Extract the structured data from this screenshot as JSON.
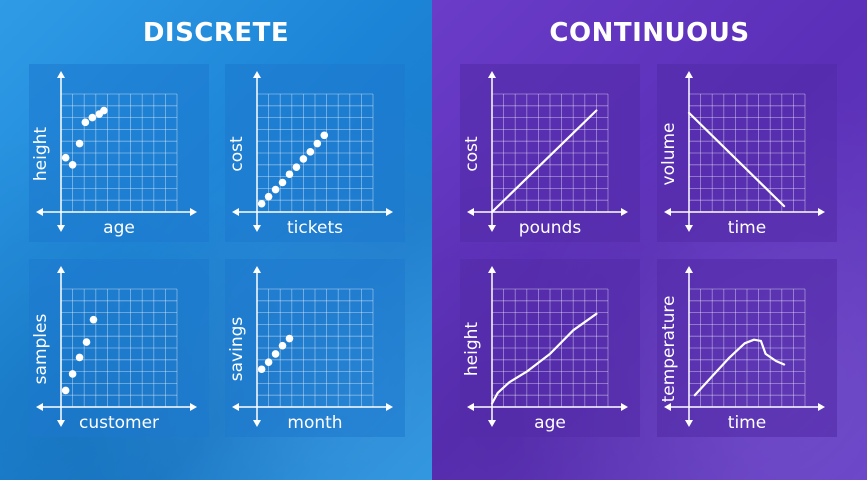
{
  "headings": {
    "discrete": "DISCRETE",
    "continuous": "CONTINUOUS"
  },
  "colors": {
    "discrete_bg": "#1c84d6",
    "continuous_bg": "#5b2fb8",
    "marks": "#ffffff"
  },
  "charts": [
    {
      "id": "height-age",
      "xlabel": "age",
      "ylabel": "height",
      "kind": "scatter",
      "points": [
        [
          0.4,
          4.6
        ],
        [
          1.0,
          4.0
        ],
        [
          1.6,
          5.8
        ],
        [
          2.1,
          7.6
        ],
        [
          2.7,
          8.0
        ],
        [
          3.3,
          8.3
        ],
        [
          3.7,
          8.6
        ]
      ]
    },
    {
      "id": "cost-tickets",
      "xlabel": "tickets",
      "ylabel": "cost",
      "kind": "scatter",
      "points": [
        [
          0.4,
          0.7
        ],
        [
          1.0,
          1.3
        ],
        [
          1.6,
          1.9
        ],
        [
          2.2,
          2.5
        ],
        [
          2.8,
          3.2
        ],
        [
          3.4,
          3.8
        ],
        [
          4.0,
          4.5
        ],
        [
          4.6,
          5.1
        ],
        [
          5.2,
          5.8
        ],
        [
          5.8,
          6.5
        ]
      ]
    },
    {
      "id": "samples-customer",
      "xlabel": "customer",
      "ylabel": "samples",
      "kind": "scatter",
      "points": [
        [
          0.4,
          1.4
        ],
        [
          1.0,
          2.8
        ],
        [
          1.6,
          4.2
        ],
        [
          2.2,
          5.5
        ],
        [
          2.8,
          7.4
        ]
      ]
    },
    {
      "id": "savings-month",
      "xlabel": "month",
      "ylabel": "savings",
      "kind": "scatter",
      "points": [
        [
          0.4,
          3.2
        ],
        [
          1.0,
          3.8
        ],
        [
          1.6,
          4.5
        ],
        [
          2.2,
          5.2
        ],
        [
          2.8,
          5.8
        ]
      ]
    },
    {
      "id": "cost-pounds",
      "xlabel": "pounds",
      "ylabel": "cost",
      "kind": "line",
      "points": [
        [
          0.0,
          0.0
        ],
        [
          9.0,
          8.6
        ]
      ]
    },
    {
      "id": "volume-time",
      "xlabel": "time",
      "ylabel": "volume",
      "kind": "line",
      "points": [
        [
          0.0,
          8.4
        ],
        [
          8.2,
          0.5
        ]
      ]
    },
    {
      "id": "height-age-continuous",
      "xlabel": "age",
      "ylabel": "height",
      "kind": "line",
      "points": [
        [
          0.0,
          0.3
        ],
        [
          0.5,
          1.2
        ],
        [
          1.5,
          2.1
        ],
        [
          3.0,
          3.0
        ],
        [
          5.0,
          4.5
        ],
        [
          7.0,
          6.5
        ],
        [
          9.0,
          7.9
        ]
      ]
    },
    {
      "id": "temperature-time",
      "xlabel": "time",
      "ylabel": "temperature",
      "kind": "line",
      "points": [
        [
          0.5,
          1.0
        ],
        [
          2.0,
          2.6
        ],
        [
          3.5,
          4.2
        ],
        [
          4.8,
          5.4
        ],
        [
          5.6,
          5.7
        ],
        [
          6.2,
          5.6
        ],
        [
          6.6,
          4.5
        ],
        [
          7.5,
          3.9
        ],
        [
          8.2,
          3.6
        ]
      ]
    }
  ]
}
